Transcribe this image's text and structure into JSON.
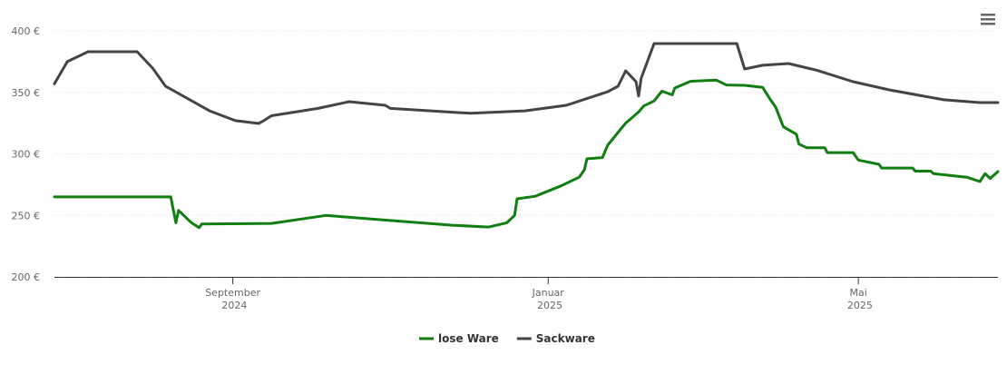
{
  "chart_data": {
    "type": "line",
    "x": [
      "2024-06-24",
      "2024-06-29",
      "2024-07-07",
      "2024-07-26",
      "2024-08-01",
      "2024-08-06",
      "2024-08-08",
      "2024-08-10",
      "2024-08-11",
      "2024-08-16",
      "2024-08-19",
      "2024-08-20",
      "2024-08-23",
      "2024-09-02",
      "2024-09-11",
      "2024-09-13",
      "2024-09-16",
      "2024-10-04",
      "2024-10-07",
      "2024-10-16",
      "2024-10-28",
      "2024-10-30",
      "2024-11-01",
      "2024-11-25",
      "2024-12-02",
      "2024-12-09",
      "2024-12-16",
      "2024-12-19",
      "2024-12-20",
      "2024-12-23",
      "2024-12-27",
      "2025-01-06",
      "2025-01-08",
      "2025-01-13",
      "2025-01-15",
      "2025-01-16",
      "2025-01-22",
      "2025-01-24",
      "2025-01-28",
      "2025-01-31",
      "2025-02-04",
      "2025-02-05",
      "2025-02-06",
      "2025-02-07",
      "2025-02-11",
      "2025-02-14",
      "2025-02-18",
      "2025-02-19",
      "2025-02-25",
      "2025-03-07",
      "2025-03-11",
      "2025-03-15",
      "2025-03-18",
      "2025-03-25",
      "2025-03-28",
      "2025-03-30",
      "2025-04-02",
      "2025-04-04",
      "2025-04-07",
      "2025-04-08",
      "2025-04-11",
      "2025-04-15",
      "2025-04-18",
      "2025-04-19",
      "2025-04-29",
      "2025-05-01",
      "2025-05-09",
      "2025-05-10",
      "2025-05-13",
      "2025-05-22",
      "2025-05-23",
      "2025-05-29",
      "2025-05-30",
      "2025-06-03",
      "2025-06-12",
      "2025-06-17",
      "2025-06-19",
      "2025-06-21",
      "2025-06-24"
    ],
    "series": [
      {
        "name": "lose Ware",
        "color": "#117e11",
        "values": [
          265,
          null,
          null,
          null,
          null,
          null,
          265,
          244,
          254,
          244,
          240,
          243,
          null,
          null,
          null,
          null,
          243.5,
          null,
          250,
          null,
          246.5,
          null,
          null,
          242,
          null,
          240.5,
          244,
          250,
          263.5,
          null,
          265.5,
          274,
          null,
          281,
          287,
          296,
          297,
          307,
          null,
          325,
          null,
          334,
          null,
          339,
          343,
          351,
          348,
          353.5,
          359,
          360,
          356,
          null,
          355.7,
          354,
          344,
          338,
          322,
          null,
          316,
          308,
          305,
          null,
          305,
          301,
          301,
          295,
          291.5,
          288.5,
          null,
          288.5,
          286,
          286,
          284,
          null,
          281,
          277.5,
          284,
          280,
          285.6
        ]
      },
      {
        "name": "Sackware",
        "color": "#434348",
        "values": [
          357,
          375,
          383,
          383,
          369.7,
          355,
          null,
          null,
          null,
          null,
          null,
          null,
          335,
          327,
          324.7,
          327,
          331,
          337,
          null,
          342.4,
          null,
          339.5,
          337,
          null,
          333,
          null,
          null,
          null,
          null,
          335,
          null,
          null,
          339.5,
          null,
          null,
          null,
          null,
          350.5,
          355,
          367.5,
          358.7,
          347,
          361.6,
          null,
          389.7,
          null,
          null,
          null,
          null,
          null,
          null,
          389.7,
          369,
          372,
          null,
          null,
          null,
          373.4,
          null,
          null,
          null,
          368,
          null,
          null,
          358.7,
          null,
          null,
          null,
          352,
          null,
          null,
          null,
          null,
          344,
          null,
          341.7,
          null,
          null,
          341.7
        ]
      }
    ],
    "xlim": [
      "2024-06-24",
      "2025-06-24"
    ],
    "xticks": [
      {
        "value": "2024-09-01",
        "label": "September 2024"
      },
      {
        "value": "2025-01-01",
        "label": "Januar 2025"
      },
      {
        "value": "2025-05-01",
        "label": "Mai 2025"
      }
    ],
    "ylim": [
      200,
      400
    ],
    "yticks": [
      {
        "value": 200,
        "label": "200 €"
      },
      {
        "value": 250,
        "label": "250 €"
      },
      {
        "value": 300,
        "label": "300 €"
      },
      {
        "value": 350,
        "label": "350 €"
      },
      {
        "value": 400,
        "label": "400 €"
      }
    ],
    "grid": true,
    "legend": "bottom"
  }
}
